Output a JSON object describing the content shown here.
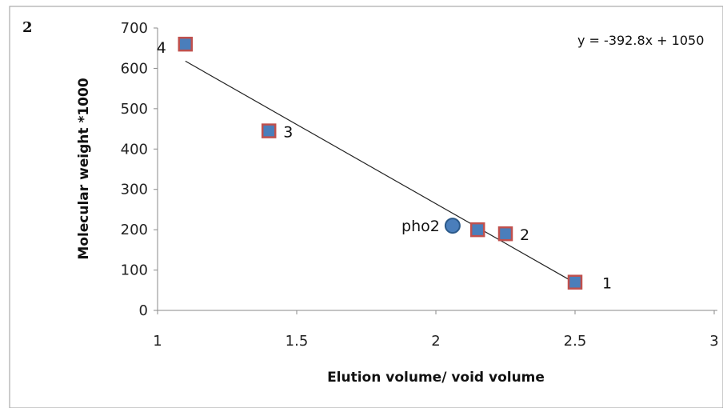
{
  "panel_label": "2",
  "chart_data": {
    "type": "scatter",
    "xlabel": "Elution volume/ void volume",
    "ylabel": "Molecular weight *1000",
    "xlim": [
      1,
      3
    ],
    "ylim": [
      0,
      700
    ],
    "x_ticks": [
      "1",
      "1.5",
      "2",
      "2.5",
      "3"
    ],
    "y_ticks": [
      "0",
      "100",
      "200",
      "300",
      "400",
      "500",
      "600",
      "700"
    ],
    "grid": false,
    "series": [
      {
        "marker": "square",
        "color": "#4a7ebb",
        "edge_color": "#c0504d",
        "points": [
          {
            "x": 1.1,
            "y": 660,
            "label": "4"
          },
          {
            "x": 1.4,
            "y": 445,
            "label": "3"
          },
          {
            "x": 2.15,
            "y": 200,
            "label": ""
          },
          {
            "x": 2.25,
            "y": 190,
            "label": "2"
          },
          {
            "x": 2.5,
            "y": 70,
            "label": "1"
          }
        ]
      },
      {
        "marker": "circle",
        "color": "#4a7ebb",
        "edge_color": "#2c5a8a",
        "points": [
          {
            "x": 2.06,
            "y": 210,
            "label": "pho2"
          }
        ]
      }
    ],
    "trendline": {
      "equation": "y = -392.8x + 1050",
      "x_range": [
        1.1,
        2.52
      ]
    }
  }
}
